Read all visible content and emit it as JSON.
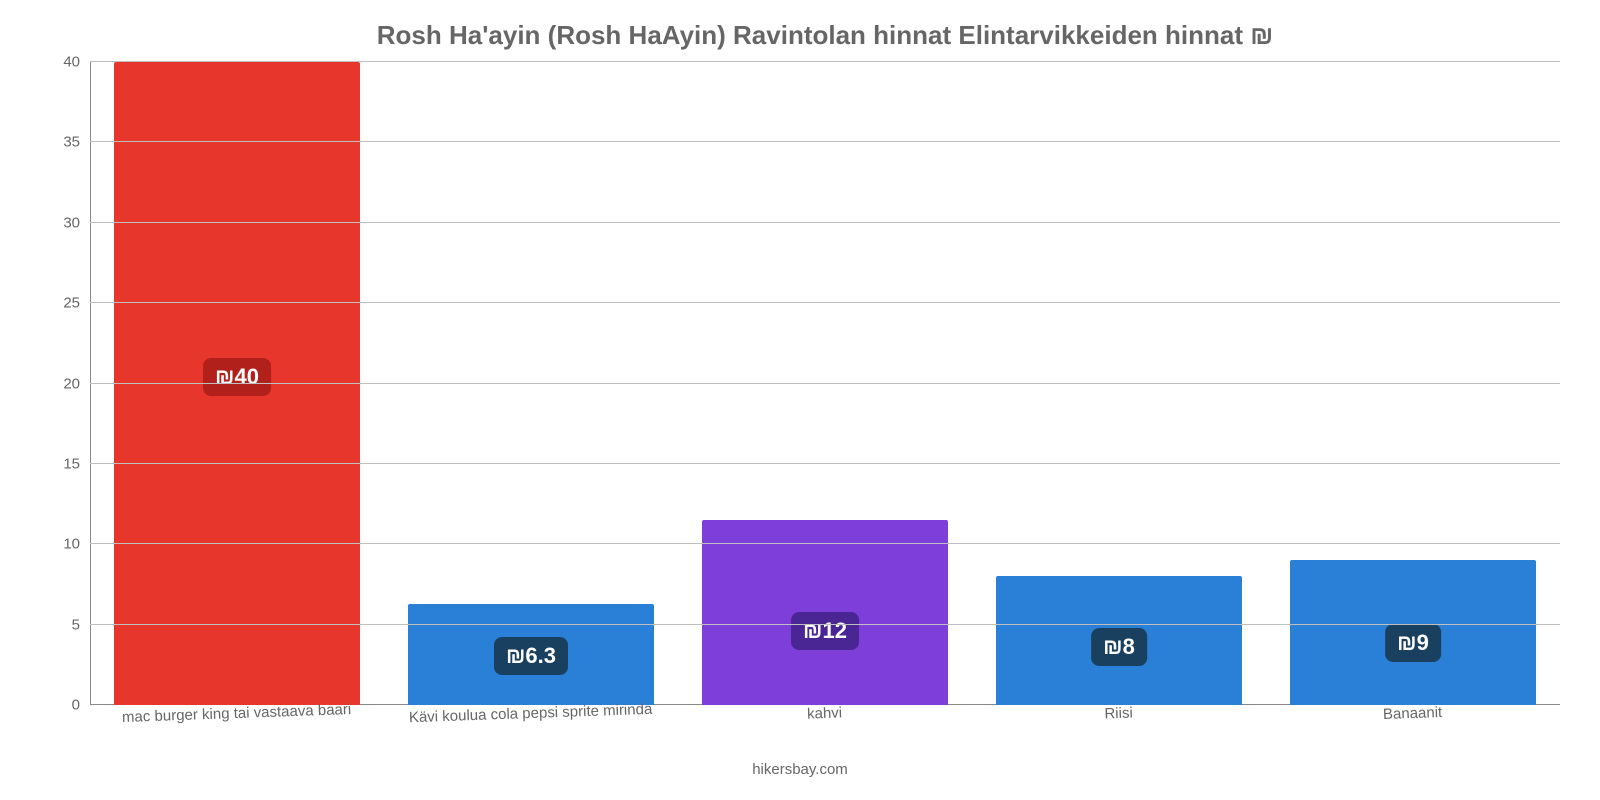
{
  "chart": {
    "type": "bar",
    "title": "Rosh Ha'ayin (Rosh HaAyin) Ravintolan hinnat Elintarvikkeiden hinnat ₪",
    "title_color": "#666666",
    "title_fontsize": 26,
    "background_color": "#ffffff",
    "grid_color": "#bfbfbf",
    "axis_color": "#888888",
    "tick_label_color": "#666666",
    "x_tick_fontsize": 15,
    "y_tick_fontsize": 15,
    "ylim": [
      0,
      40
    ],
    "yticks": [
      0,
      5,
      10,
      15,
      20,
      25,
      30,
      35,
      40
    ],
    "bar_width_pct": 84,
    "categories": [
      "mac burger king tai vastaava baari",
      "Kävi koulua cola pepsi sprite mirinda",
      "kahvi",
      "Riisi",
      "Banaanit"
    ],
    "values": [
      40,
      6.3,
      11.5,
      8,
      9
    ],
    "value_labels": [
      "₪40",
      "₪6.3",
      "₪12",
      "₪8",
      "₪9"
    ],
    "bar_colors": [
      "#e7362b",
      "#2a7fd7",
      "#7e3ed9",
      "#2a7fd7",
      "#2a7fd7"
    ],
    "label_badge_bg": [
      "#b1201a",
      "#19405f",
      "#4a2694",
      "#19405f",
      "#19405f"
    ],
    "label_badge_fontsize": 22,
    "label_badge_text_color": "#ffffff",
    "footer": "hikersbay.com",
    "footer_color": "#666666"
  }
}
